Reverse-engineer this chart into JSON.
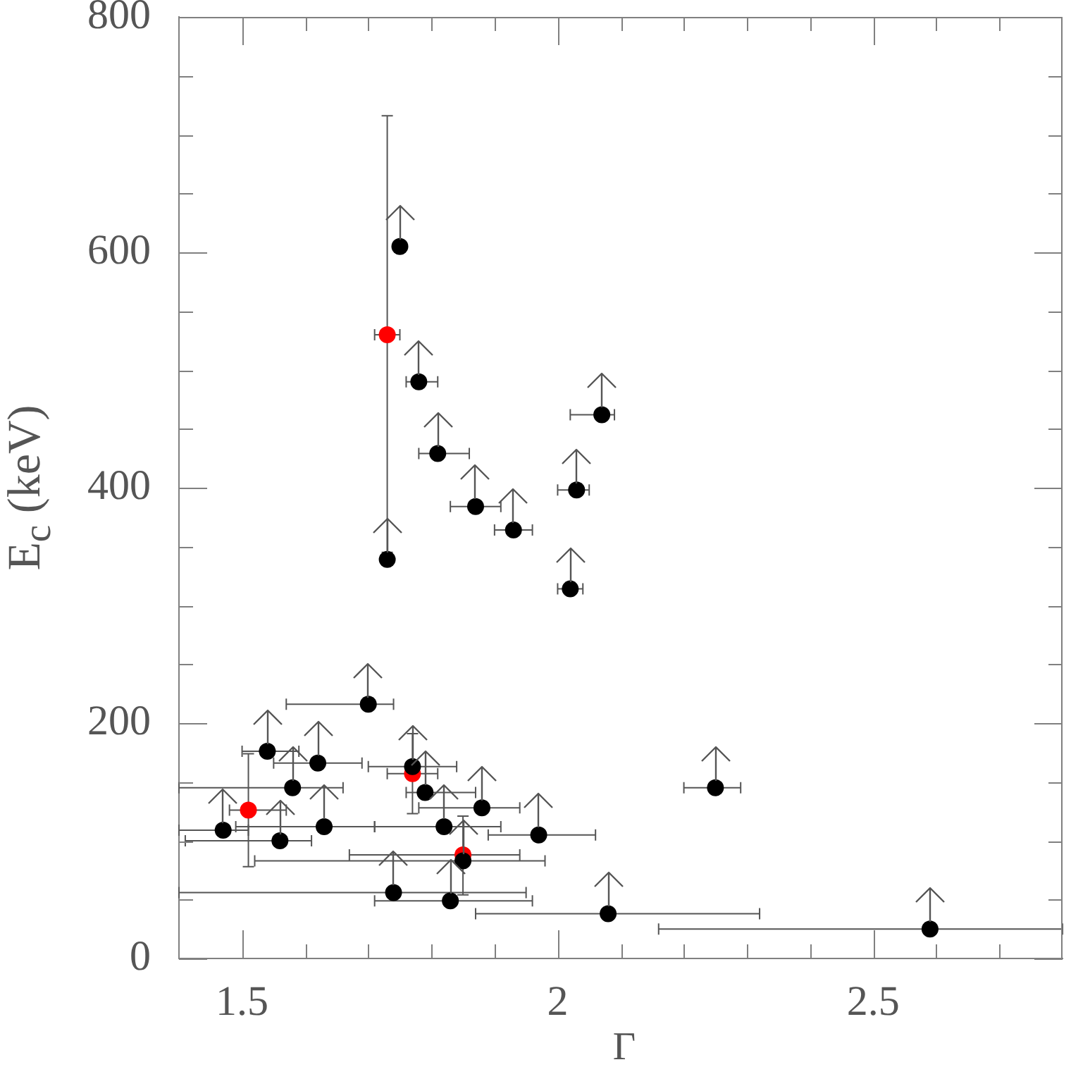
{
  "chart_data": {
    "type": "scatter",
    "xlabel": "Γ",
    "ylabel": "E$_{c}$ (keV)",
    "marker": "circle",
    "xlim": [
      1.4,
      2.8
    ],
    "xticks": [
      1.5,
      {
        "value": 1.6,
        "label": null
      },
      {
        "value": 1.7,
        "label": null
      },
      {
        "value": 1.8,
        "label": null
      },
      {
        "value": 1.9,
        "label": null
      },
      2,
      {
        "value": 2.1,
        "label": null
      },
      {
        "value": 2.2,
        "label": null
      },
      {
        "value": 2.3,
        "label": null
      },
      {
        "value": 2.4,
        "label": null
      },
      2.5,
      {
        "value": 2.6,
        "label": null
      },
      {
        "value": 2.7,
        "label": null
      }
    ],
    "ylim": [
      0,
      800
    ],
    "yticks": [
      0,
      {
        "value": 50,
        "label": null
      },
      {
        "value": 100,
        "label": null
      },
      {
        "value": 150,
        "label": null
      },
      200,
      {
        "value": 250,
        "label": null
      },
      {
        "value": 300,
        "label": null
      },
      {
        "value": 350,
        "label": null
      },
      400,
      {
        "value": 450,
        "label": null
      },
      {
        "value": 500,
        "label": null
      },
      {
        "value": 550,
        "label": null
      },
      600,
      {
        "value": 650,
        "label": null
      },
      {
        "value": 700,
        "label": null
      },
      {
        "value": 750,
        "label": null
      },
      800
    ],
    "series": [
      {
        "color": "#000000",
        "x": [
          1.47,
          1.54,
          1.56,
          1.58,
          1.62,
          1.63,
          1.7,
          1.73,
          1.74,
          1.75,
          1.77,
          1.78,
          1.79,
          1.81,
          1.82,
          1.83,
          1.85,
          1.87,
          1.88,
          1.93,
          1.97,
          2.02,
          2.03,
          2.07,
          2.08,
          2.25,
          2.59
        ],
        "values": [
          109,
          176,
          100,
          145,
          166,
          112,
          216,
          339,
          56,
          605,
          163,
          490,
          141,
          429,
          112,
          49,
          83,
          384,
          128,
          364,
          105,
          314,
          398,
          462,
          38,
          145,
          25
        ],
        "xerrors": [
          [
            1.4,
            1.51
          ],
          [
            1.5,
            1.59
          ],
          [
            1.41,
            1.61
          ],
          [
            1.4,
            1.66
          ],
          [
            1.55,
            1.69
          ],
          [
            1.49,
            1.71
          ],
          [
            1.57,
            1.74
          ],
          null,
          [
            1.4,
            1.95
          ],
          null,
          [
            1.7,
            1.84
          ],
          [
            1.76,
            1.81
          ],
          [
            1.76,
            1.87
          ],
          [
            1.78,
            1.86
          ],
          [
            1.71,
            1.91
          ],
          [
            1.71,
            1.96
          ],
          [
            1.52,
            1.98
          ],
          [
            1.83,
            1.91
          ],
          [
            1.78,
            1.94
          ],
          [
            1.9,
            1.96
          ],
          [
            1.89,
            2.06
          ],
          [
            2.0,
            2.04
          ],
          [
            2.0,
            2.05
          ],
          [
            2.02,
            2.09
          ],
          [
            1.87,
            2.32
          ],
          [
            2.2,
            2.29
          ],
          [
            2.16,
            2.8
          ]
        ]
      },
      {
        "color": "#ff0000",
        "x": [
          1.51,
          1.73,
          1.77,
          1.85
        ],
        "values": [
          126,
          530,
          157,
          88
        ],
        "xerrors": [
          [
            1.48,
            1.57
          ],
          [
            1.71,
            1.75
          ],
          [
            1.73,
            1.81
          ],
          [
            1.67,
            1.94
          ]
        ],
        "errors": [
          [
            78,
            174
          ],
          [
            345,
            716
          ],
          [
            123,
            191
          ],
          [
            54,
            121
          ]
        ]
      }
    ]
  }
}
